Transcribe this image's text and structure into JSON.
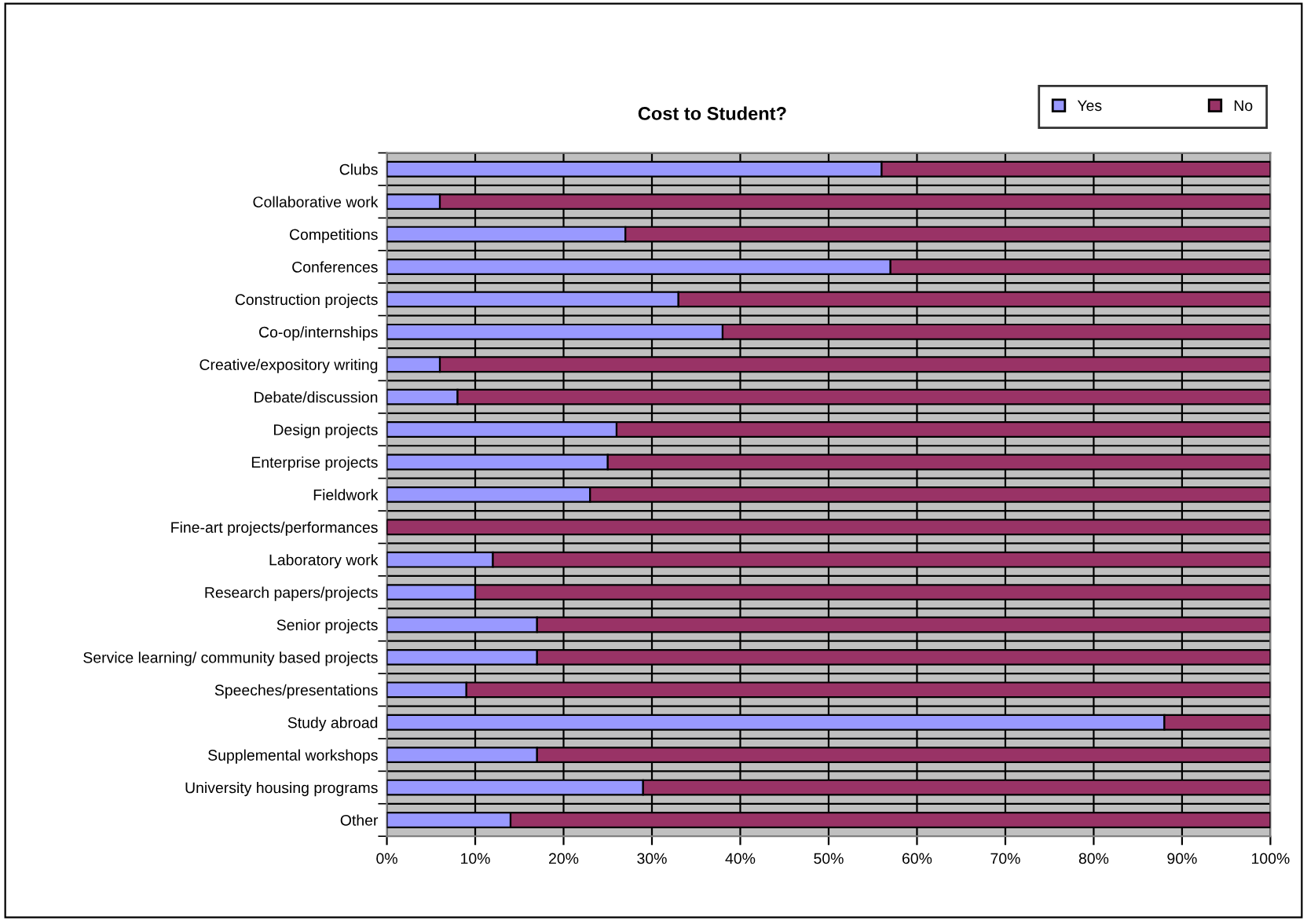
{
  "chart_data": {
    "type": "bar",
    "title": "Cost to Student?",
    "orientation": "horizontal",
    "stacked": true,
    "categories": [
      "Clubs",
      "Collaborative work",
      "Competitions",
      "Conferences",
      "Construction projects",
      "Co-op/internships",
      "Creative/expository writing",
      "Debate/discussion",
      "Design projects",
      "Enterprise projects",
      "Fieldwork",
      "Fine-art projects/performances",
      "Laboratory work",
      "Research papers/projects",
      "Senior projects",
      "Service learning/ community based projects",
      "Speeches/presentations",
      "Study abroad",
      "Supplemental workshops",
      "University housing programs",
      "Other"
    ],
    "series": [
      {
        "name": "Yes",
        "color": "#9999ff",
        "values": [
          56,
          6,
          27,
          57,
          33,
          38,
          6,
          8,
          26,
          25,
          23,
          0,
          12,
          10,
          17,
          17,
          9,
          88,
          17,
          29,
          14
        ]
      },
      {
        "name": "No",
        "color": "#993366",
        "values": [
          44,
          94,
          73,
          43,
          67,
          62,
          94,
          92,
          74,
          75,
          77,
          100,
          88,
          90,
          83,
          83,
          91,
          12,
          83,
          71,
          86
        ]
      }
    ],
    "xlim": [
      0,
      100
    ],
    "xticks": [
      {
        "value": 0,
        "label": "0%"
      },
      {
        "value": 10,
        "label": "10%"
      },
      {
        "value": 20,
        "label": "20%"
      },
      {
        "value": 30,
        "label": "30%"
      },
      {
        "value": 40,
        "label": "40%"
      },
      {
        "value": 50,
        "label": "50%"
      },
      {
        "value": 60,
        "label": "60%"
      },
      {
        "value": 70,
        "label": "70%"
      },
      {
        "value": 80,
        "label": "80%"
      },
      {
        "value": 90,
        "label": "90%"
      },
      {
        "value": 100,
        "label": "100%"
      }
    ],
    "grid": true,
    "legend": "top right"
  }
}
